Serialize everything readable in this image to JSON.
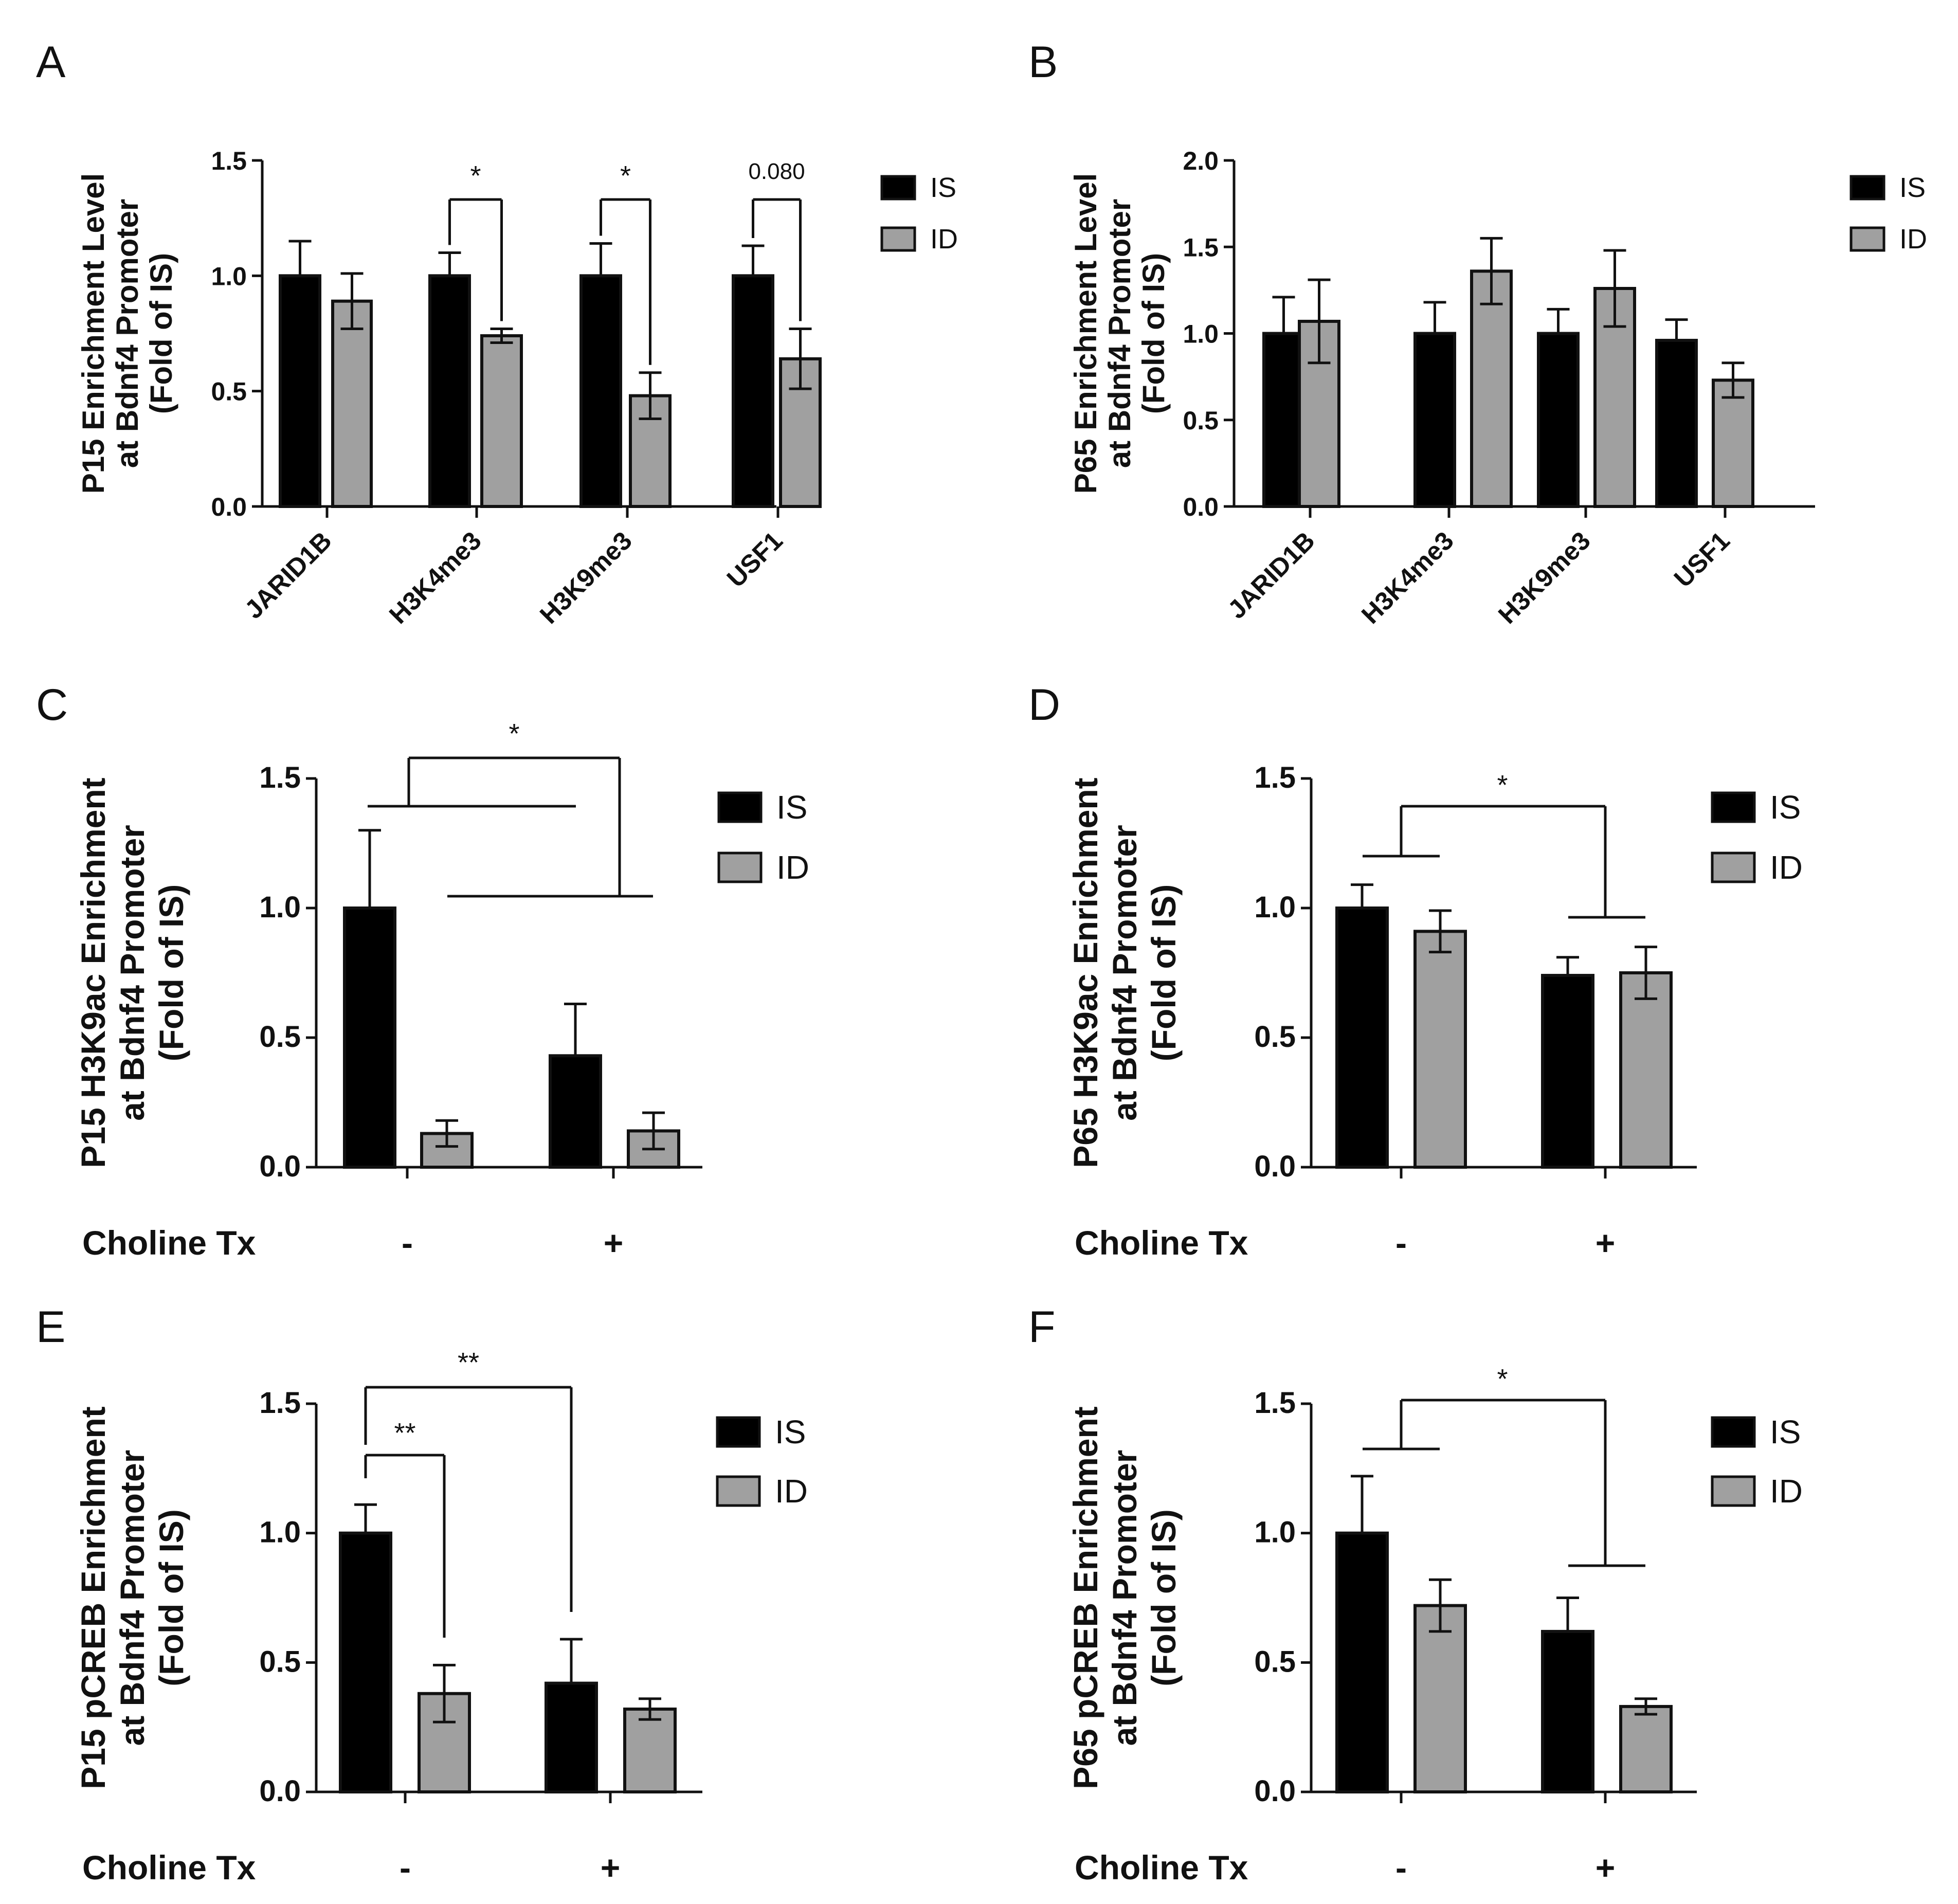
{
  "legend": {
    "is": "IS",
    "id": "ID"
  },
  "colors": {
    "is": "#000000",
    "id": "#a0a0a0"
  },
  "choline_label": "Choline Tx",
  "chart_data": [
    {
      "panel": "A",
      "type": "bar",
      "ylabel": [
        "P15 Enrichment Level",
        "at Bdnf4 Promoter",
        "(Fold of IS)"
      ],
      "ylim": [
        0,
        1.5
      ],
      "yticks": [
        "0.0",
        "0.5",
        "1.0",
        "1.5"
      ],
      "categories": [
        "JARID1B",
        "H3K4me3",
        "H3K9me3",
        "USF1"
      ],
      "series": [
        {
          "name": "IS",
          "values": [
            1.0,
            1.0,
            1.0,
            1.0
          ],
          "errors": [
            0.15,
            0.1,
            0.14,
            0.13
          ]
        },
        {
          "name": "ID",
          "values": [
            0.89,
            0.74,
            0.48,
            0.64
          ],
          "errors": [
            0.12,
            0.03,
            0.1,
            0.13
          ]
        }
      ],
      "annotations": [
        {
          "group": 1,
          "text": "*"
        },
        {
          "group": 2,
          "text": "*"
        },
        {
          "group": 3,
          "text": "0.080"
        }
      ]
    },
    {
      "panel": "B",
      "type": "bar",
      "ylabel": [
        "P65 Enrichment Level",
        "at Bdnf4 Promoter",
        "(Fold of IS)"
      ],
      "ylim": [
        0,
        2.0
      ],
      "yticks": [
        "0.0",
        "0.5",
        "1.0",
        "1.5",
        "2.0"
      ],
      "categories": [
        "JARID1B",
        "H3K4me3",
        "H3K9me3",
        "USF1"
      ],
      "series": [
        {
          "name": "IS",
          "values": [
            1.0,
            1.0,
            1.0,
            0.96
          ],
          "errors": [
            0.21,
            0.18,
            0.14,
            0.12
          ]
        },
        {
          "name": "ID",
          "values": [
            1.07,
            1.36,
            1.26,
            0.73
          ],
          "errors": [
            0.24,
            0.19,
            0.22,
            0.1
          ]
        }
      ],
      "annotations": []
    },
    {
      "panel": "C",
      "type": "bar",
      "ylabel": [
        "P15 H3K9ac Enrichment",
        "at Bdnf4 Promoter",
        "(Fold of IS)"
      ],
      "ylim": [
        0,
        1.5
      ],
      "yticks": [
        "0.0",
        "0.5",
        "1.0",
        "1.5"
      ],
      "categories": [
        "-",
        "+"
      ],
      "series": [
        {
          "name": "IS",
          "values": [
            1.0,
            0.43
          ],
          "errors": [
            0.3,
            0.2
          ]
        },
        {
          "name": "ID",
          "values": [
            0.13,
            0.14
          ],
          "errors": [
            0.05,
            0.07
          ]
        }
      ],
      "annotations": [
        {
          "type": "main-effect",
          "text": "*"
        }
      ]
    },
    {
      "panel": "D",
      "type": "bar",
      "ylabel": [
        "P65 H3K9ac Enrichment",
        "at Bdnf4 Promoter",
        "(Fold of IS)"
      ],
      "ylim": [
        0,
        1.5
      ],
      "yticks": [
        "0.0",
        "0.5",
        "1.0",
        "1.5"
      ],
      "categories": [
        "-",
        "+"
      ],
      "series": [
        {
          "name": "IS",
          "values": [
            1.0,
            0.74
          ],
          "errors": [
            0.09,
            0.07
          ]
        },
        {
          "name": "ID",
          "values": [
            0.91,
            0.75
          ],
          "errors": [
            0.08,
            0.1
          ]
        }
      ],
      "annotations": [
        {
          "type": "main-effect",
          "text": "*"
        }
      ]
    },
    {
      "panel": "E",
      "type": "bar",
      "ylabel": [
        "P15 pCREB Enrichment",
        "at Bdnf4 Promoter",
        "(Fold of IS)"
      ],
      "ylim": [
        0,
        1.5
      ],
      "yticks": [
        "0.0",
        "0.5",
        "1.0",
        "1.5"
      ],
      "categories": [
        "-",
        "+"
      ],
      "series": [
        {
          "name": "IS",
          "values": [
            1.0,
            0.42
          ],
          "errors": [
            0.11,
            0.17
          ]
        },
        {
          "name": "ID",
          "values": [
            0.38,
            0.32
          ],
          "errors": [
            0.11,
            0.04
          ]
        }
      ],
      "annotations": [
        {
          "type": "pair",
          "from": "IS -",
          "to": "ID -",
          "text": "**"
        },
        {
          "type": "pair",
          "from": "IS -",
          "to": "IS +",
          "text": "**"
        }
      ]
    },
    {
      "panel": "F",
      "type": "bar",
      "ylabel": [
        "P65 pCREB Enrichment",
        "at Bdnf4 Promoter",
        "(Fold of IS)"
      ],
      "ylim": [
        0,
        1.5
      ],
      "yticks": [
        "0.0",
        "0.5",
        "1.0",
        "1.5"
      ],
      "categories": [
        "-",
        "+"
      ],
      "series": [
        {
          "name": "IS",
          "values": [
            1.0,
            0.62
          ],
          "errors": [
            0.22,
            0.13
          ]
        },
        {
          "name": "ID",
          "values": [
            0.72,
            0.33
          ],
          "errors": [
            0.1,
            0.03
          ]
        }
      ],
      "annotations": [
        {
          "type": "main-effect",
          "text": "*"
        }
      ]
    }
  ]
}
